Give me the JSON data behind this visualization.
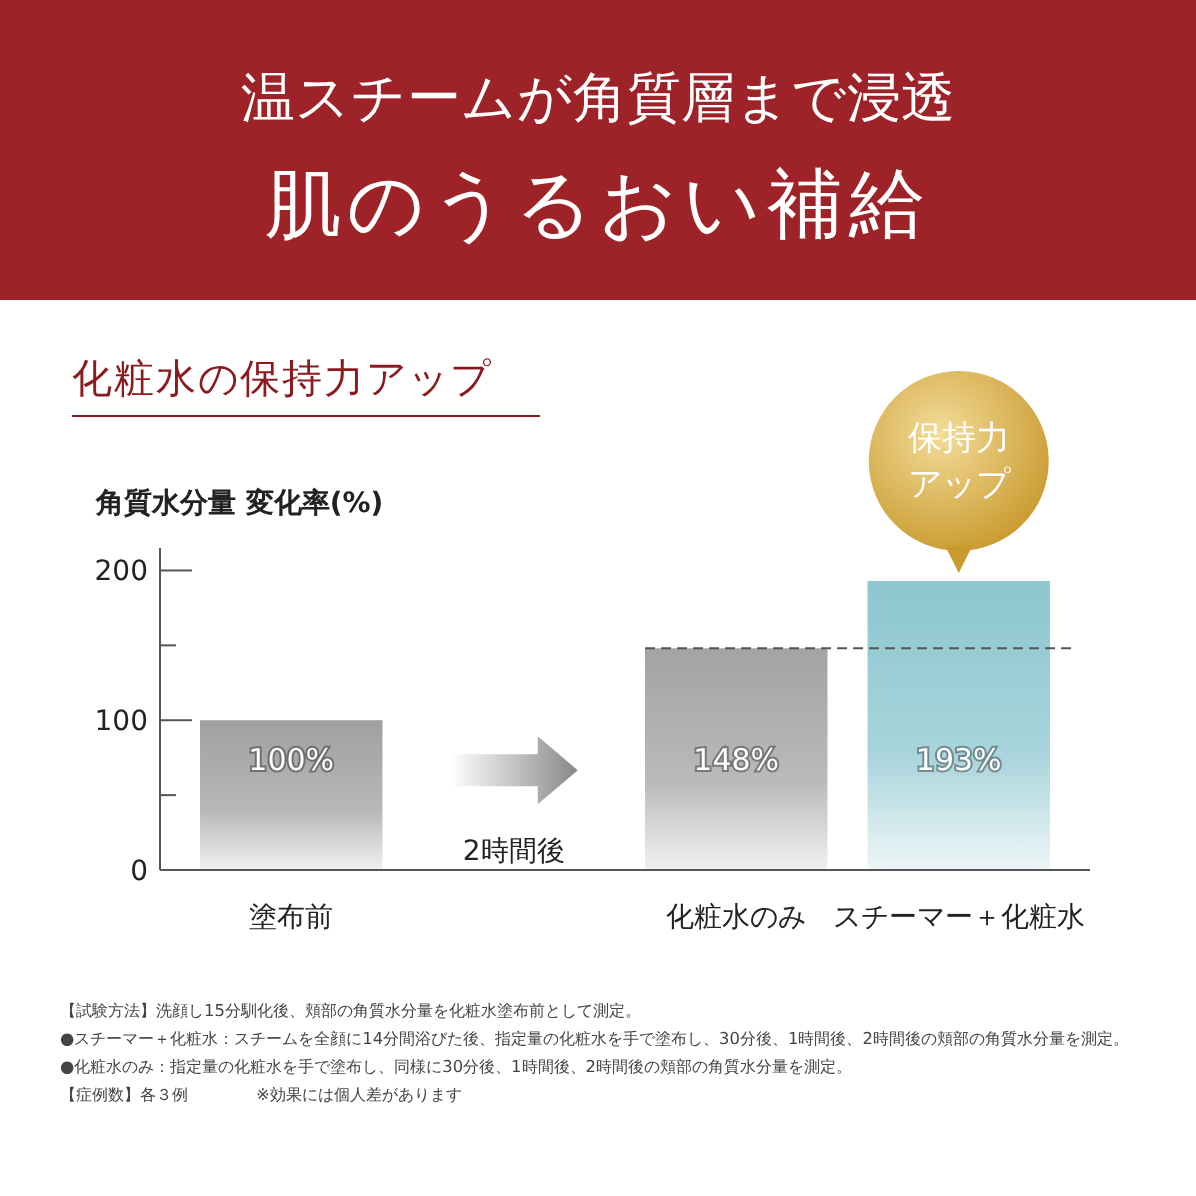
{
  "chart_data": {
    "type": "bar",
    "title": "温スチームが角質層まで浸透",
    "subtitle": "肌のうるおい補給",
    "ylabel": "角質水分量 変化率(%)",
    "categories": [
      "塗布前",
      null,
      "化粧水のみ",
      "スチーマー＋化粧水"
    ],
    "values": [
      100,
      null,
      148,
      193
    ],
    "colors": [
      "#a0a0a0",
      null,
      "#a3a3a5",
      "#8cc6cf"
    ],
    "value_labels": [
      "100%",
      null,
      "148%",
      "193%"
    ],
    "ylim": [
      0,
      215
    ],
    "yticks": [
      0,
      {
        "value": 50,
        "label": null
      },
      100,
      {
        "value": 150,
        "label": null
      },
      200
    ],
    "ref_lines": [
      {
        "axis": "y",
        "value": 148,
        "line_style": "dashed",
        "color": "#555555"
      }
    ],
    "annotations": [
      "化粧水の保持力アップ",
      {
        "text": "2時間後"
      },
      {
        "text": "保持力アップ",
        "x": "スチーマー＋化粧水",
        "y": 193
      },
      "【試験方法】洗顔し15分馴化後、頬部の角質水分量を化粧水塗布前として測定。",
      "●スチーマー＋化粧水：スチームを全顔に14分間浴びた後、指定量の化粧水を手で塗布し、30分後、1時間後、2時間後の頬部の角質水分量を測定。",
      "●化粧水のみ：指定量の化粧水を手で塗布し、同様に30分後、1時間後、2時間後の頬部の角質水分量を測定。",
      "【症例数】各３例",
      "※効果には個人差があります"
    ]
  }
}
